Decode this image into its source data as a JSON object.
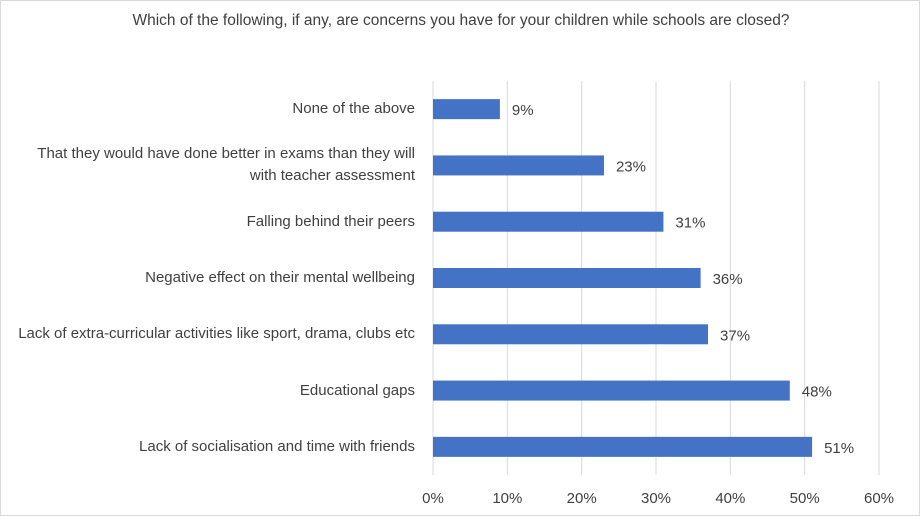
{
  "chart_data": {
    "type": "hbar",
    "title": "Which of the following, if any, are concerns you have for your children while schools are closed?",
    "categories": [
      "None of the above",
      "That they would have done better in exams than they will with teacher assessment",
      "Falling behind their peers",
      "Negative effect on their mental wellbeing",
      "Lack of extra-curricular activities like sport, drama, clubs etc",
      "Educational gaps",
      "Lack of socialisation and time with friends"
    ],
    "values": [
      9,
      23,
      31,
      36,
      37,
      48,
      51
    ],
    "value_labels": [
      "9%",
      "23%",
      "31%",
      "36%",
      "37%",
      "48%",
      "51%"
    ],
    "color": "#4472c4",
    "xlim": [
      0,
      60
    ],
    "xticks": [
      {
        "value": 0,
        "label": "0%"
      },
      {
        "value": 10,
        "label": "10%"
      },
      {
        "value": 20,
        "label": "20%"
      },
      {
        "value": 30,
        "label": "30%"
      },
      {
        "value": 40,
        "label": "40%"
      },
      {
        "value": 50,
        "label": "50%"
      },
      {
        "value": 60,
        "label": "60%"
      }
    ],
    "grid": true
  }
}
